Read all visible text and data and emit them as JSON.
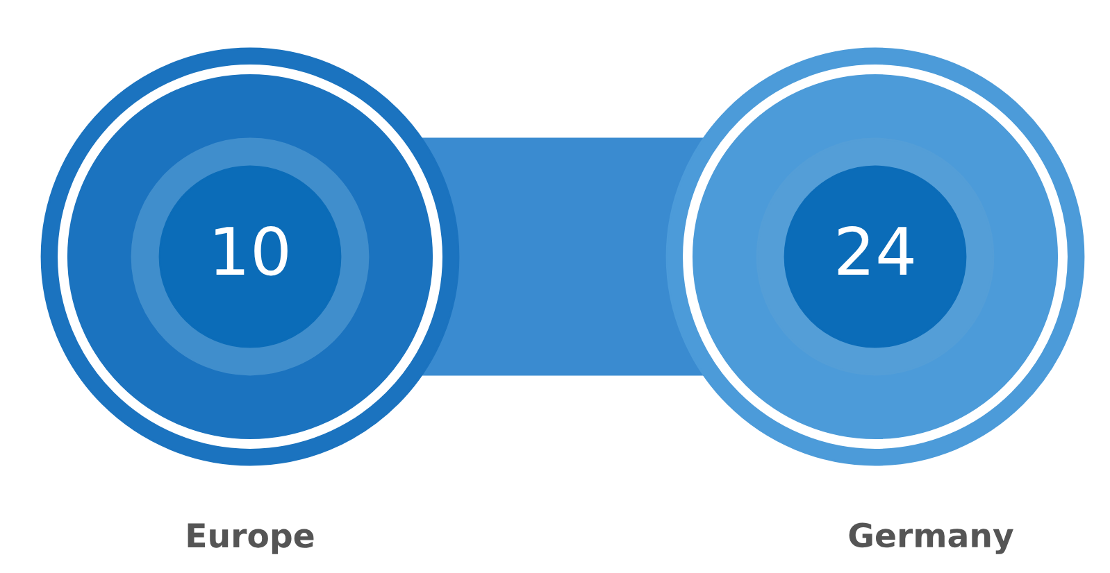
{
  "chart_data": {
    "type": "other",
    "categories": [
      "Europe",
      "Germany"
    ],
    "values": [
      10,
      24
    ],
    "colors": [
      "#0b6cb8",
      "#0b6cb8"
    ],
    "data_labels": true
  }
}
